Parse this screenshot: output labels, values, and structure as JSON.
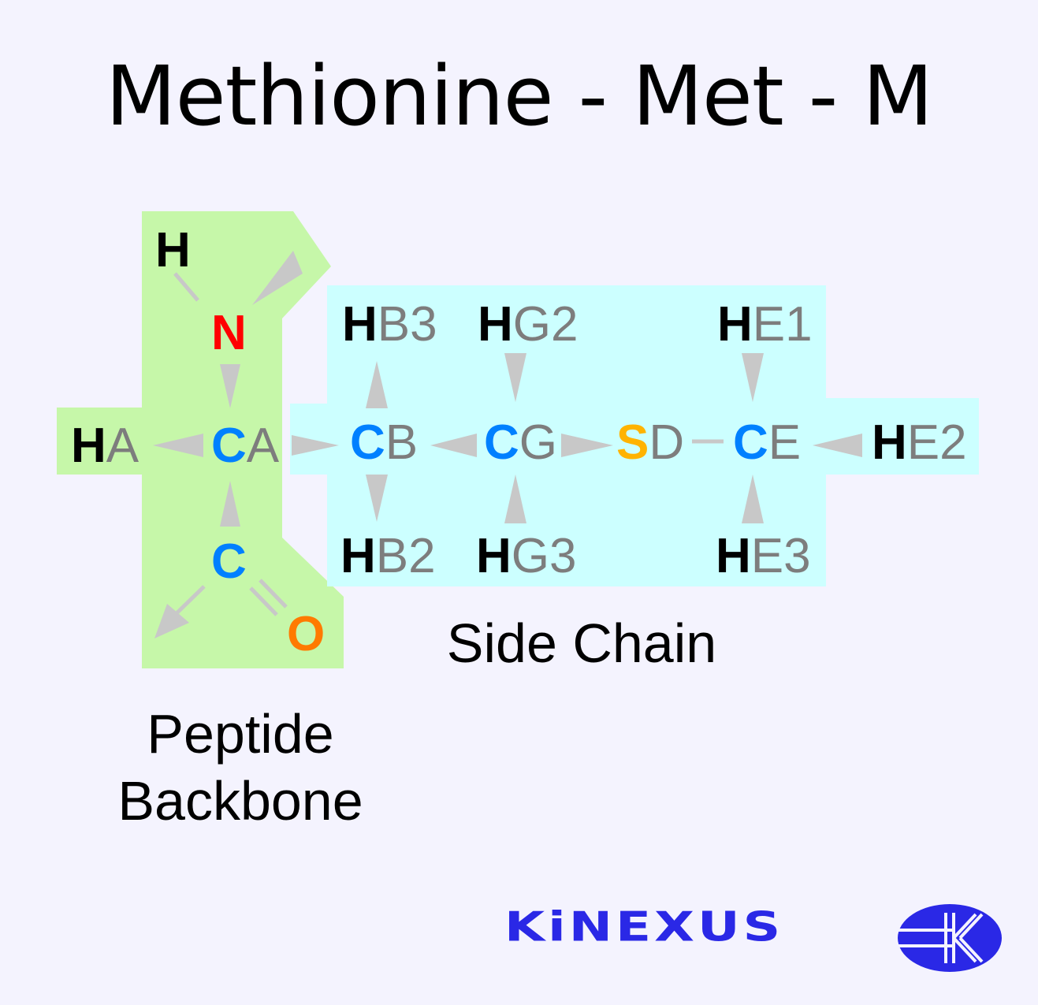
{
  "title": "Methionine - Met - M",
  "regions": {
    "backbone_label_line1": "Peptide",
    "backbone_label_line2": "Backbone",
    "side_chain_label": "Side Chain"
  },
  "atoms": {
    "H": {
      "el": "H",
      "suf": ""
    },
    "N": {
      "el": "N",
      "suf": ""
    },
    "HA": {
      "el": "H",
      "suf": "A"
    },
    "CA": {
      "el": "C",
      "suf": "A"
    },
    "C": {
      "el": "C",
      "suf": ""
    },
    "O": {
      "el": "O",
      "suf": ""
    },
    "CB": {
      "el": "C",
      "suf": "B"
    },
    "HB3": {
      "el": "H",
      "suf": "B3"
    },
    "HB2": {
      "el": "H",
      "suf": "B2"
    },
    "CG": {
      "el": "C",
      "suf": "G"
    },
    "HG2": {
      "el": "H",
      "suf": "G2"
    },
    "HG3": {
      "el": "H",
      "suf": "G3"
    },
    "SD": {
      "el": "S",
      "suf": "D"
    },
    "CE": {
      "el": "C",
      "suf": "E"
    },
    "HE1": {
      "el": "H",
      "suf": "E1"
    },
    "HE2": {
      "el": "H",
      "suf": "E2"
    },
    "HE3": {
      "el": "H",
      "suf": "E3"
    }
  },
  "colors": {
    "backbone_region": "#c6f7a9",
    "side_chain_region": "#ccffff",
    "hydrogen": "#000000",
    "carbon": "#0080ff",
    "nitrogen": "#ff0000",
    "oxygen": "#ff7a00",
    "sulfur": "#ffb300",
    "suffix": "#7d7d7d",
    "bond": "#c8c8c8",
    "logo": "#2a28e6"
  },
  "logo": {
    "text": "KiNEXUS",
    "icon": "kinexus-k-globe-icon"
  }
}
